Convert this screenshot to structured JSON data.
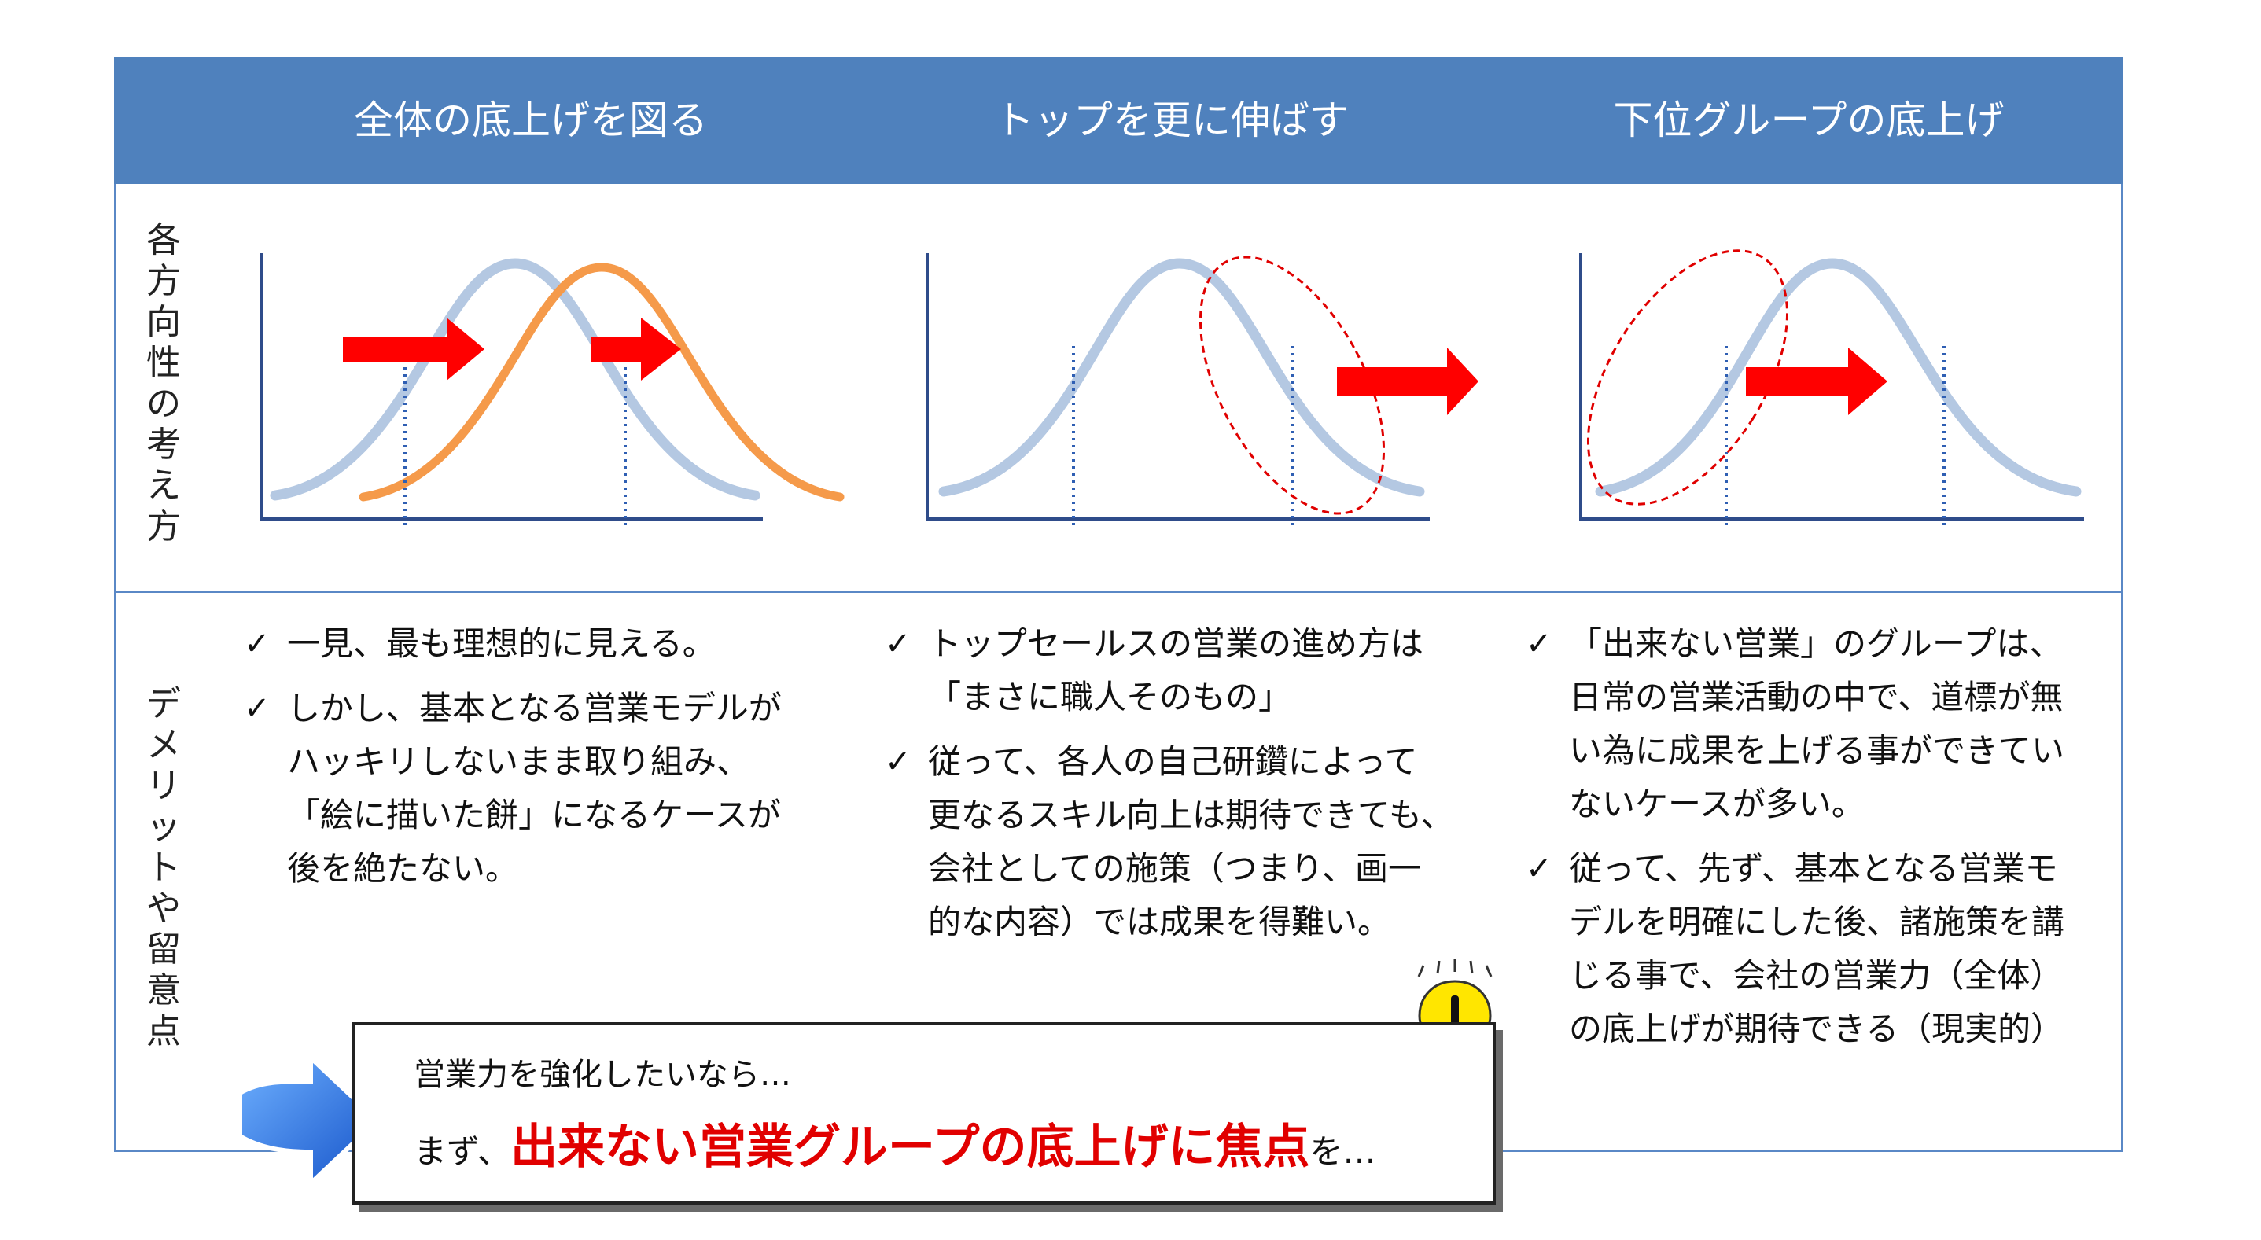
{
  "columns": [
    {
      "title": "全体の底上げを図る"
    },
    {
      "title": "トップを更に伸ばす"
    },
    {
      "title": "下位グループの底上げ"
    }
  ],
  "row_labels": {
    "concept": "各方向性の考え方",
    "demerits": "デメリットや留意点"
  },
  "check_symbol": "✓",
  "bullets": {
    "col1": [
      "一見、最も理想的に見える。",
      "しかし、基本となる営業モデルが\nハッキリしないまま取り組み、\n「絵に描いた餅」になるケースが\n後を絶たない。"
    ],
    "col2": [
      "トップセールスの営業の進め方は\n「まさに職人そのもの」",
      "従って、各人の自己研鑽によって\n更なるスキル向上は期待できても、\n会社としての施策（つまり、画一\n的な内容）では成果を得難い。"
    ],
    "col3": [
      "「出来ない営業」のグループは、\n日常の営業活動の中で、道標が無\nい為に成果を上げる事ができてい\nないケースが多い。",
      "従って、先ず、基本となる営業モ\nデルを明確にした後、諸施策を講\nじる事で、会社の営業力（全体）\nの底上げが期待できる（現実的）"
    ]
  },
  "callout": {
    "line1": "営業力を強化したいなら…",
    "line2_prefix": "まず、",
    "line2_emphasis": "出来ない営業グループの底上げに焦点",
    "line2_suffix": "を…"
  },
  "colors": {
    "header": "#4f81bd",
    "curve": "#b4c8e2",
    "shifted_curve": "#f59a4a",
    "arrow": "#ff0000",
    "emphasis": "#e10000",
    "callout_arrow": "#1f64d8"
  },
  "icons": [
    "check-icon",
    "red-arrow-icon",
    "blue-arrow-icon",
    "lightbulb-icon"
  ]
}
